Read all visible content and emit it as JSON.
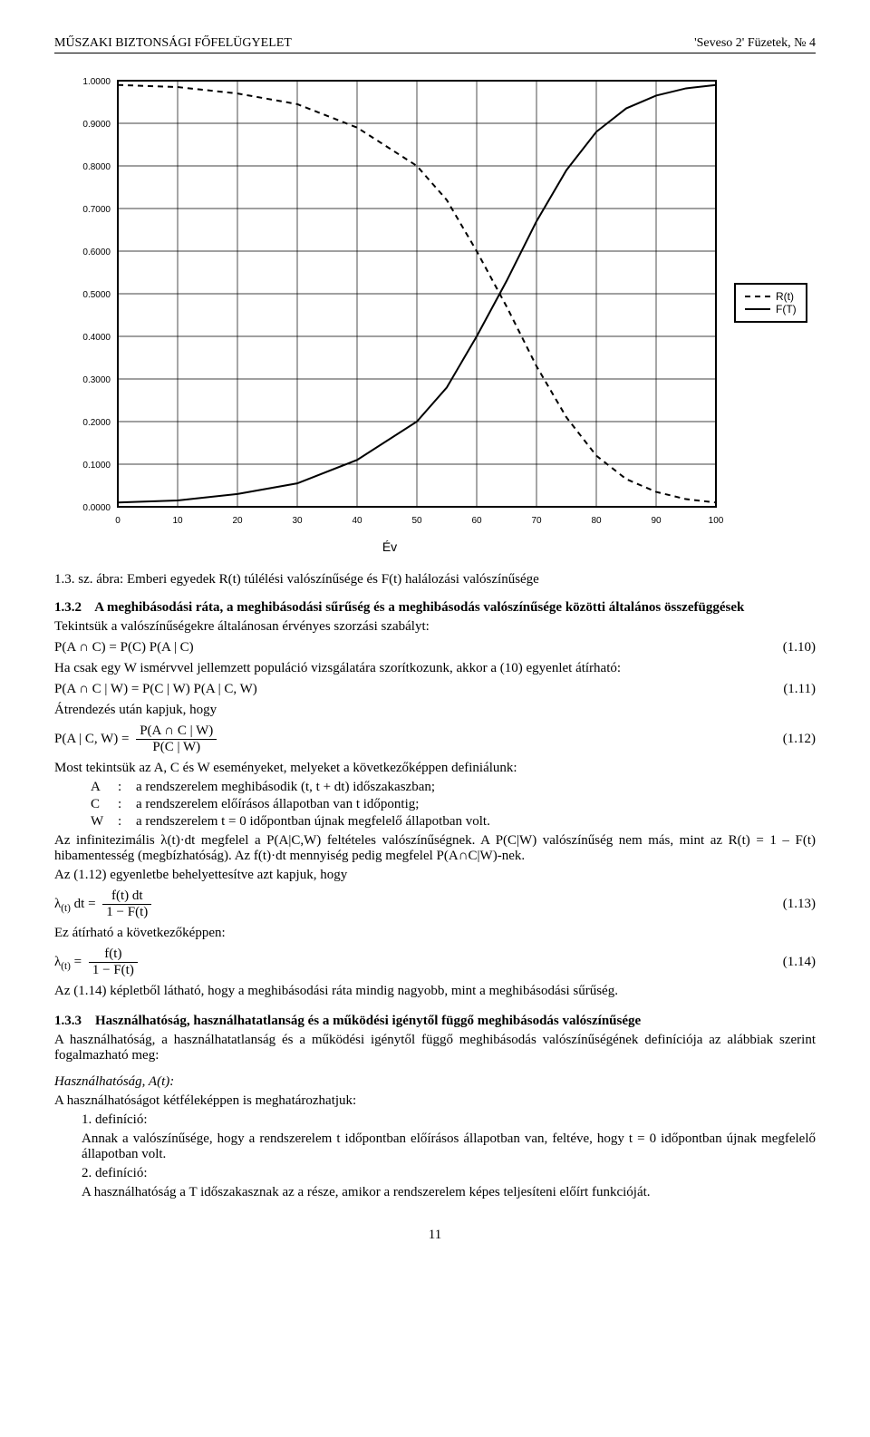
{
  "header": {
    "left": "MŰSZAKI BIZTONSÁGI FŐFELÜGYELET",
    "right": "'Seveso 2' Füzetek, № 4"
  },
  "chart": {
    "type": "line",
    "xlabel": "Év",
    "xlim": [
      0,
      100
    ],
    "ylim": [
      0,
      1.0
    ],
    "xtick_step": 10,
    "ytick_step": 0.1,
    "xtick_labels": [
      "0",
      "10",
      "20",
      "30",
      "40",
      "50",
      "60",
      "70",
      "80",
      "90",
      "100"
    ],
    "ytick_labels": [
      "0.0000",
      "0.1000",
      "0.2000",
      "0.3000",
      "0.4000",
      "0.5000",
      "0.6000",
      "0.7000",
      "0.8000",
      "0.9000",
      "1.0000"
    ],
    "background_color": "#ffffff",
    "grid_color": "#000000",
    "axis_color": "#000000",
    "label_fontsize": 12,
    "tick_fontsize": 10,
    "series": [
      {
        "name": "R(t)",
        "legend_label": "R(t)",
        "style": "dashed",
        "color": "#000000",
        "line_width": 2,
        "points": [
          [
            0,
            0.99
          ],
          [
            10,
            0.985
          ],
          [
            20,
            0.97
          ],
          [
            30,
            0.945
          ],
          [
            40,
            0.89
          ],
          [
            50,
            0.8
          ],
          [
            55,
            0.72
          ],
          [
            60,
            0.6
          ],
          [
            65,
            0.47
          ],
          [
            70,
            0.33
          ],
          [
            75,
            0.21
          ],
          [
            80,
            0.12
          ],
          [
            85,
            0.065
          ],
          [
            90,
            0.035
          ],
          [
            95,
            0.018
          ],
          [
            100,
            0.01
          ]
        ]
      },
      {
        "name": "F(t)",
        "legend_label": "F(T)",
        "style": "solid",
        "color": "#000000",
        "line_width": 2,
        "points": [
          [
            0,
            0.01
          ],
          [
            10,
            0.015
          ],
          [
            20,
            0.03
          ],
          [
            30,
            0.055
          ],
          [
            40,
            0.11
          ],
          [
            50,
            0.2
          ],
          [
            55,
            0.28
          ],
          [
            60,
            0.4
          ],
          [
            65,
            0.53
          ],
          [
            70,
            0.67
          ],
          [
            75,
            0.79
          ],
          [
            80,
            0.88
          ],
          [
            85,
            0.935
          ],
          [
            90,
            0.965
          ],
          [
            95,
            0.982
          ],
          [
            100,
            0.99
          ]
        ]
      }
    ]
  },
  "caption": {
    "prefix": "1.3. sz. ábra: ",
    "text": "Emberi egyedek R(t) túlélési valószínűsége és F(t) halálozási valószínűsége"
  },
  "sect132": {
    "num": "1.3.2",
    "title": "A meghibásodási ráta, a meghibásodási sűrűség és a meghibásodás valószínűsége közötti általános összefüggések",
    "p1": "Tekintsük a valószínűségekre általánosan érvényes szorzási szabályt:",
    "eq110": {
      "text": "P(A ∩ C) = P(C) P(A | C)",
      "num": "(1.10)"
    },
    "p2": "Ha csak egy W ismérvvel jellemzett populáció vizsgálatára szorítkozunk, akkor a (10) egyenlet átírható:",
    "eq111": {
      "text": "P(A ∩ C | W) = P(C | W) P(A | C, W)",
      "num": "(1.11)"
    },
    "p3": "Átrendezés után kapjuk, hogy",
    "eq112": {
      "lhs": "P(A | C, W) =",
      "num_frac": "P(A ∩ C | W)",
      "den_frac": "P(C | W)",
      "num": "(1.12)"
    },
    "p4": "Most tekintsük az A, C és W eseményeket, melyeket a következőképpen definiálunk:",
    "defs": {
      "A": "a rendszerelem meghibásodik (t, t + dt) időszakaszban;",
      "C": "a rendszerelem előírásos állapotban van t időpontig;",
      "W": "a rendszerelem t = 0 időpontban újnak megfelelő állapotban volt."
    },
    "p5": "Az infinitezimális λ(t)·dt megfelel a P(A|C,W) feltételes valószínűségnek. A P(C|W) valószínűség nem más, mint az R(t) = 1 – F(t) hibamentesség (megbízhatóság). Az f(t)·dt mennyiség pedig megfelel P(A∩C|W)-nek.",
    "p6": "Az (1.12) egyenletbe behelyettesítve azt kapjuk, hogy",
    "eq113": {
      "lhs": "λ",
      "sub": "(t)",
      "mid": " dt =",
      "num_frac": "f(t) dt",
      "den_frac": "1 − F(t)",
      "num": "(1.13)"
    },
    "p7": "Ez átírható a következőképpen:",
    "eq114": {
      "lhs": "λ",
      "sub": "(t)",
      "mid": " =",
      "num_frac": "f(t)",
      "den_frac": "1 − F(t)",
      "num": "(1.14)"
    },
    "p8": "Az (1.14) képletből látható, hogy a meghibásodási ráta mindig nagyobb, mint a meghibásodási sűrűség."
  },
  "sect133": {
    "num": "1.3.3",
    "title": "Használhatóság, használhatatlanság és a működési igénytől függő meghibásodás valószínűsége",
    "p1": "A használhatóság, a használhatatlanság és a működési igénytől függő meghibásodás valószínűségének definíciója az alábbiak szerint fogalmazható meg:",
    "h1": "Használhatóság, A(t):",
    "p2": "A használhatóságot kétféleképpen is meghatározhatjuk:",
    "d1_label": "1. definíció:",
    "d1_text": "Annak a valószínűsége, hogy a rendszerelem t időpontban előírásos állapotban van, feltéve, hogy t = 0 időpontban újnak megfelelő állapotban volt.",
    "d2_label": "2. definíció:",
    "d2_text": "A használhatóság a T időszakasznak az a része, amikor a rendszerelem képes teljesíteni előírt funkcióját."
  },
  "page_number": "11"
}
